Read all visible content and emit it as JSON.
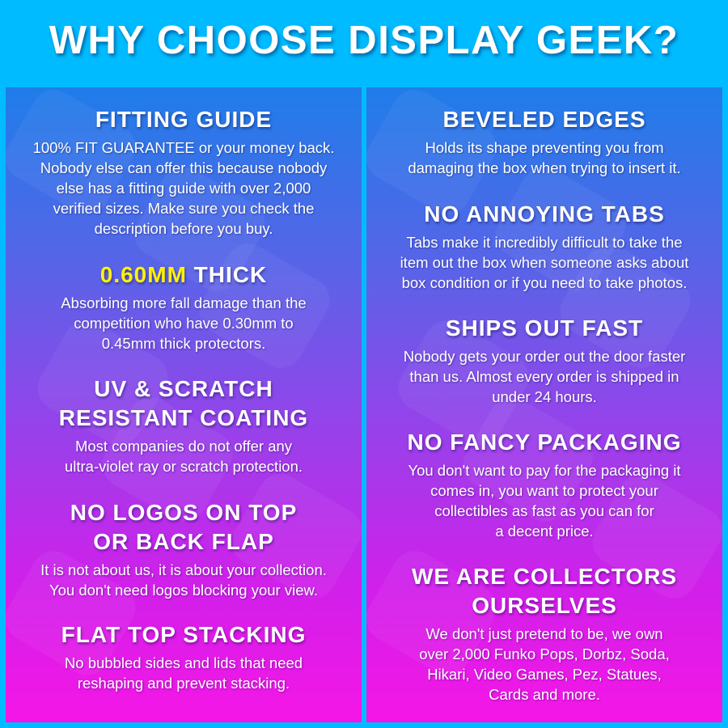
{
  "title": "WHY CHOOSE DISPLAY GEEK?",
  "colors": {
    "background": "#00bbff",
    "gradient_top": "#1f7de9",
    "gradient_bottom": "#f516e6",
    "highlight": "#fff200"
  },
  "left_column": [
    {
      "heading": [
        {
          "highlight": "",
          "text": "FITTING GUIDE"
        }
      ],
      "body": [
        "100% FIT GUARANTEE or your money back.",
        "Nobody else can offer this because nobody",
        "else has a fitting guide with over 2,000",
        "verified sizes. Make sure you check the",
        "description before you buy."
      ]
    },
    {
      "heading": [
        {
          "highlight": "0.60MM",
          "text": " THICK"
        }
      ],
      "body": [
        "Absorbing more fall damage than the",
        "competition who have 0.30mm to",
        "0.45mm thick protectors."
      ]
    },
    {
      "heading": [
        {
          "highlight": "",
          "text": "UV & SCRATCH"
        },
        {
          "highlight": "",
          "text": "RESISTANT COATING"
        }
      ],
      "body": [
        "Most companies do not offer any",
        "ultra-violet ray or scratch protection."
      ]
    },
    {
      "heading": [
        {
          "highlight": "",
          "text": "NO LOGOS ON TOP"
        },
        {
          "highlight": "",
          "text": "OR BACK FLAP"
        }
      ],
      "body": [
        "It is not about us, it is about your collection.",
        "You don't need logos blocking your view."
      ]
    },
    {
      "heading": [
        {
          "highlight": "",
          "text": "FLAT TOP STACKING"
        }
      ],
      "body": [
        "No bubbled sides and lids that need",
        "reshaping and prevent stacking."
      ]
    }
  ],
  "right_column": [
    {
      "heading": [
        {
          "highlight": "",
          "text": "BEVELED EDGES"
        }
      ],
      "body": [
        "Holds its shape preventing you from",
        "damaging the box when trying to insert it."
      ]
    },
    {
      "heading": [
        {
          "highlight": "",
          "text": "NO ANNOYING TABS"
        }
      ],
      "body": [
        "Tabs make it incredibly difficult to take the",
        "item out the box when someone asks about",
        "box condition or if you need to take photos."
      ]
    },
    {
      "heading": [
        {
          "highlight": "",
          "text": "SHIPS OUT FAST"
        }
      ],
      "body": [
        "Nobody gets your order out the door faster",
        "than us. Almost every order is shipped in",
        "under 24 hours."
      ]
    },
    {
      "heading": [
        {
          "highlight": "",
          "text": "NO FANCY PACKAGING"
        }
      ],
      "body": [
        "You don't want to pay for the packaging it",
        "comes in, you want to protect your",
        "collectibles as fast as you can for",
        "a decent price."
      ]
    },
    {
      "heading": [
        {
          "highlight": "",
          "text": "WE ARE COLLECTORS"
        },
        {
          "highlight": "",
          "text": "OURSELVES"
        }
      ],
      "body": [
        "We don't just pretend to be, we own",
        "over 2,000 Funko Pops, Dorbz, Soda,",
        "Hikari, Video Games, Pez, Statues,",
        "Cards and more."
      ]
    }
  ]
}
